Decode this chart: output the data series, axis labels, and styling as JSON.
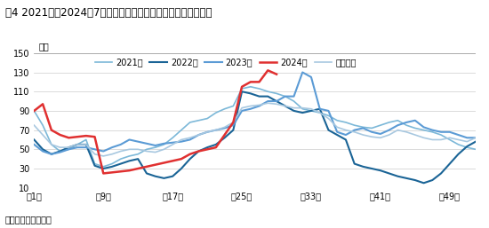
{
  "title": "图4 2021年至2024年7月中国大豆压榨企业豆粕周度库存走势图",
  "ylabel": "万吨",
  "source": "数据来源：卓创资讯",
  "xtick_labels": [
    "第1周",
    "第9周",
    "第17周",
    "第25周",
    "第33周",
    "第41周",
    "第49周"
  ],
  "xtick_positions": [
    1,
    9,
    17,
    25,
    33,
    41,
    49
  ],
  "ylim": [
    10,
    150
  ],
  "yticks": [
    10,
    30,
    50,
    70,
    90,
    110,
    130,
    150
  ],
  "background_color": "#f5f5f5",
  "series": {
    "2021年": {
      "color": "#7cb8d8",
      "linewidth": 1.2,
      "data": [
        90,
        75,
        55,
        48,
        50,
        55,
        60,
        35,
        32,
        35,
        40,
        43,
        45,
        50,
        52,
        55,
        62,
        70,
        78,
        80,
        82,
        88,
        92,
        95,
        113,
        115,
        113,
        110,
        108,
        105,
        100,
        92,
        90,
        88,
        85,
        80,
        78,
        75,
        73,
        72,
        75,
        78,
        80,
        75,
        72,
        70,
        68,
        65,
        60,
        55,
        52,
        50
      ]
    },
    "2022年": {
      "color": "#1a6496",
      "linewidth": 1.5,
      "data": [
        60,
        50,
        45,
        48,
        52,
        55,
        55,
        33,
        30,
        32,
        35,
        38,
        40,
        25,
        22,
        20,
        22,
        30,
        40,
        48,
        52,
        55,
        62,
        70,
        110,
        108,
        105,
        105,
        100,
        95,
        90,
        88,
        90,
        92,
        70,
        65,
        60,
        35,
        32,
        30,
        28,
        25,
        22,
        20,
        18,
        15,
        18,
        25,
        35,
        45,
        53,
        58
      ]
    },
    "2023年": {
      "color": "#5b9bd5",
      "linewidth": 1.5,
      "data": [
        55,
        48,
        45,
        47,
        50,
        52,
        52,
        50,
        48,
        52,
        55,
        60,
        58,
        56,
        54,
        56,
        57,
        58,
        60,
        65,
        68,
        70,
        72,
        75,
        90,
        92,
        95,
        100,
        100,
        105,
        105,
        130,
        125,
        92,
        90,
        68,
        65,
        70,
        72,
        68,
        66,
        70,
        75,
        78,
        80,
        73,
        70,
        68,
        68,
        65,
        62,
        62
      ]
    },
    "2024年": {
      "color": "#e03030",
      "linewidth": 1.8,
      "data": [
        90,
        97,
        70,
        65,
        62,
        63,
        64,
        63,
        25,
        26,
        27,
        28,
        30,
        32,
        34,
        36,
        38,
        40,
        45,
        48,
        50,
        52,
        65,
        78,
        115,
        120,
        120,
        132,
        128,
        null,
        null,
        null,
        null,
        null,
        null,
        null,
        null,
        null,
        null,
        null,
        null,
        null,
        null,
        null,
        null,
        null,
        null,
        null,
        null,
        null,
        null,
        null
      ]
    },
    "五年均值": {
      "color": "#a8c8e0",
      "linewidth": 1.2,
      "data": [
        75,
        65,
        55,
        52,
        52,
        55,
        55,
        45,
        43,
        45,
        48,
        50,
        50,
        48,
        47,
        50,
        55,
        60,
        62,
        65,
        68,
        70,
        73,
        78,
        93,
        95,
        96,
        98,
        97,
        95,
        93,
        93,
        92,
        88,
        82,
        73,
        70,
        68,
        65,
        63,
        62,
        65,
        70,
        68,
        65,
        62,
        60,
        60,
        62,
        60,
        58,
        62
      ]
    }
  }
}
